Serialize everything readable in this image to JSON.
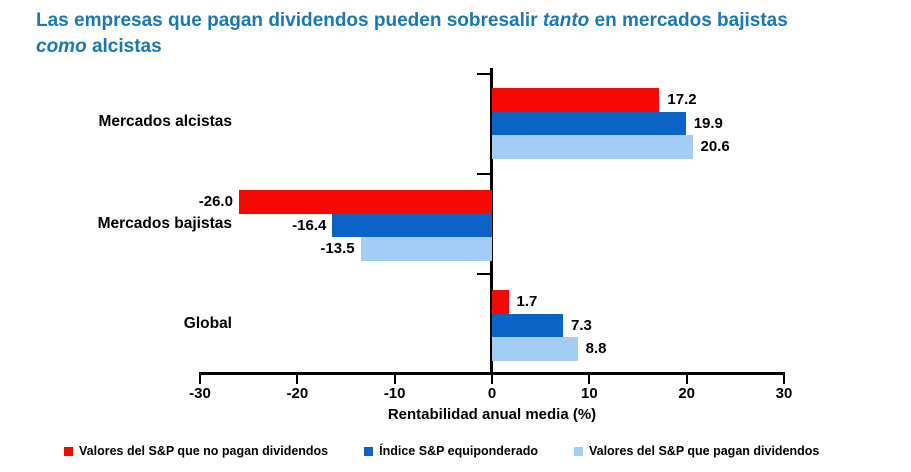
{
  "title": {
    "part1": "Las empresas que pagan dividendos pueden sobresalir ",
    "part2_italic": "tanto",
    "part3": " en mercados bajistas",
    "part4_italic": "como",
    "part5": " alcistas"
  },
  "chart_data": {
    "type": "bar",
    "orientation": "horizontal",
    "title": "Las empresas que pagan dividendos pueden sobresalir tanto en mercados bajistas como alcistas",
    "categories": [
      "Mercados alcistas",
      "Mercados bajistas",
      "Global"
    ],
    "series": [
      {
        "name": "Valores del S&P que no pagan dividendos",
        "color": "#F40A05",
        "values": [
          17.2,
          -26.0,
          1.7
        ]
      },
      {
        "name": "Índice S&P equiponderado",
        "color": "#0B63C5",
        "values": [
          19.9,
          -16.4,
          7.3
        ]
      },
      {
        "name": "Valores del S&P que pagan dividendos",
        "color": "#A4CDF6",
        "values": [
          20.6,
          -13.5,
          8.8
        ]
      }
    ],
    "xlabel": "Rentabilidad anual media (%)",
    "xlim": [
      -30,
      30
    ],
    "xticks": [
      -30,
      -20,
      -10,
      0,
      10,
      20,
      30
    ],
    "value_labels_shown": true,
    "value_label_decimals": 1,
    "grid": false,
    "legend_position": "bottom"
  },
  "colors": {
    "title_blue": "#1878B8",
    "axis_black": "#000000",
    "background": "#FFFFFF"
  }
}
